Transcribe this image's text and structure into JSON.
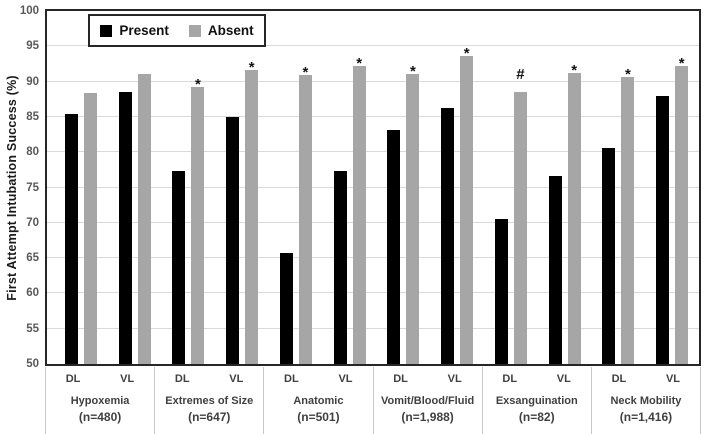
{
  "chart_data": {
    "type": "bar",
    "title": "",
    "ylabel": "First Attempt Intubation Success (%)",
    "xlabel": "",
    "ylim": [
      50,
      100
    ],
    "ytick_step": 5,
    "yticks": [
      100,
      95,
      90,
      85,
      80,
      75,
      70,
      65,
      60,
      55,
      50
    ],
    "grid": "horizontal",
    "legend_position": "top-left-inside",
    "legend": [
      {
        "name": "Present",
        "color": "#000000"
      },
      {
        "name": "Absent",
        "color": "#a6a6a6"
      }
    ],
    "marker_meanings": [
      "*",
      "#"
    ],
    "groups": [
      {
        "label": "Hypoxemia",
        "n_label": "(n=480)",
        "devices": [
          {
            "device": "DL",
            "present": 85.4,
            "absent": 88.4,
            "absent_marker": ""
          },
          {
            "device": "VL",
            "present": 88.5,
            "absent": 91.1,
            "absent_marker": ""
          }
        ]
      },
      {
        "label": "Extremes of Size",
        "n_label": "(n=647)",
        "devices": [
          {
            "device": "DL",
            "present": 77.4,
            "absent": 89.3,
            "absent_marker": "*"
          },
          {
            "device": "VL",
            "present": 85.0,
            "absent": 91.6,
            "absent_marker": "*"
          }
        ]
      },
      {
        "label": "Anatomic",
        "n_label": "(n=501)",
        "devices": [
          {
            "device": "DL",
            "present": 65.7,
            "absent": 91.0,
            "absent_marker": "*"
          },
          {
            "device": "VL",
            "present": 77.4,
            "absent": 92.2,
            "absent_marker": "*"
          }
        ]
      },
      {
        "label": "Vomit/Blood/Fluid",
        "n_label": "(n=1,988)",
        "devices": [
          {
            "device": "DL",
            "present": 83.2,
            "absent": 91.1,
            "absent_marker": "*"
          },
          {
            "device": "VL",
            "present": 86.3,
            "absent": 93.7,
            "absent_marker": "*"
          }
        ]
      },
      {
        "label": "Exsanguination",
        "n_label": "(n=82)",
        "devices": [
          {
            "device": "DL",
            "present": 70.5,
            "absent": 88.6,
            "absent_marker": "#"
          },
          {
            "device": "VL",
            "present": 76.6,
            "absent": 91.2,
            "absent_marker": "*"
          }
        ]
      },
      {
        "label": "Neck Mobility",
        "n_label": "(n=1,416)",
        "devices": [
          {
            "device": "DL",
            "present": 80.6,
            "absent": 90.6,
            "absent_marker": "*"
          },
          {
            "device": "VL",
            "present": 87.9,
            "absent": 92.2,
            "absent_marker": "*"
          }
        ]
      }
    ],
    "colors": {
      "present_bar": "#000000",
      "absent_bar": "#a6a6a6",
      "gridline": "#d9d9d9",
      "axis_tick_text": "#595959",
      "category_text": "#404040",
      "plot_border": "#262626"
    }
  }
}
